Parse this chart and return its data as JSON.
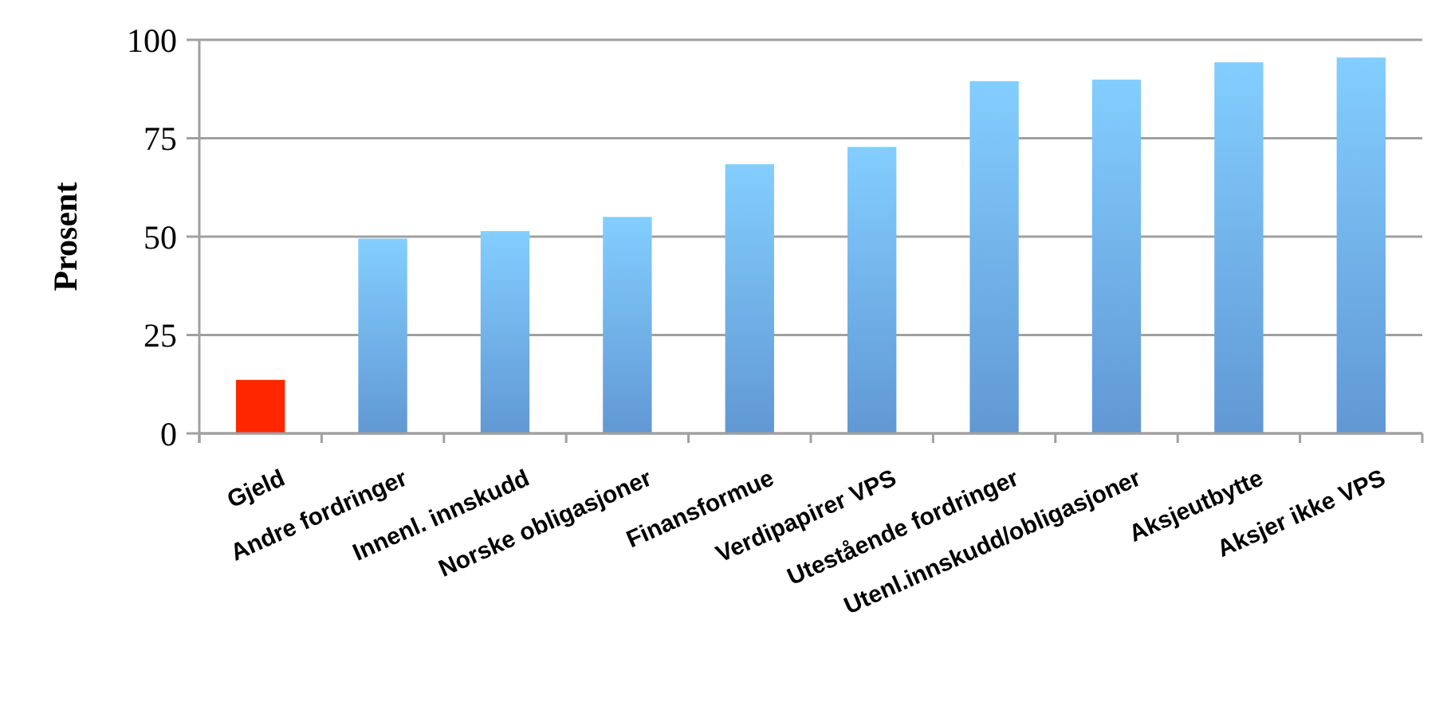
{
  "chart_data": {
    "type": "bar",
    "ylabel": "Prosent",
    "categories": [
      "Gjeld",
      "Andre fordringer",
      "Innenl. innskudd",
      "Norske obligasjoner",
      "Finansformue",
      "Verdipapirer VPS",
      "Utestående fordringer",
      "Utenl.innskudd/obligasjoner",
      "Aksjeutbytte",
      "Aksjer ikke VPS"
    ],
    "values": [
      13.6,
      49.5,
      51.4,
      55,
      68.4,
      72.8,
      89.5,
      89.9,
      94.3,
      95.5
    ],
    "colors": [
      "#ff2600",
      "#6aa6e8",
      "#6aa6e8",
      "#6aa6e8",
      "#6aa6e8",
      "#6aa6e8",
      "#6aa6e8",
      "#6aa6e8",
      "#6aa6e8",
      "#6aa6e8"
    ],
    "ylim": [
      0,
      100
    ],
    "yticks": [
      0,
      25,
      50,
      75,
      100
    ],
    "grid": "y"
  }
}
